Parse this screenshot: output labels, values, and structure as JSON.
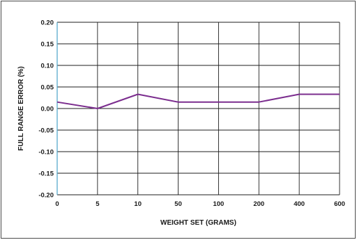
{
  "chart_data": {
    "type": "line",
    "title": "",
    "xlabel": "WEIGHT SET (GRAMS)",
    "ylabel": "FULL RANGE ERROR (%)",
    "categories": [
      "0",
      "5",
      "10",
      "50",
      "100",
      "200",
      "400",
      "600"
    ],
    "ylim": [
      -0.2,
      0.2
    ],
    "yticks": [
      "0.20",
      "0.15",
      "0.10",
      "0.05",
      "0.00",
      "-0.05",
      "-0.10",
      "-0.15",
      "-0.20"
    ],
    "ytick_values": [
      0.2,
      0.15,
      0.1,
      0.05,
      0.0,
      -0.05,
      -0.1,
      -0.15,
      -0.2
    ],
    "grid": true,
    "series": [
      {
        "values": [
          0.015,
          0.0,
          0.033,
          0.015,
          0.015,
          0.015,
          0.033,
          0.033
        ]
      }
    ],
    "colors": {
      "line": "#7b2d8e",
      "grid": "#1e1e1e",
      "left_axis": "#4aa3c8"
    }
  }
}
